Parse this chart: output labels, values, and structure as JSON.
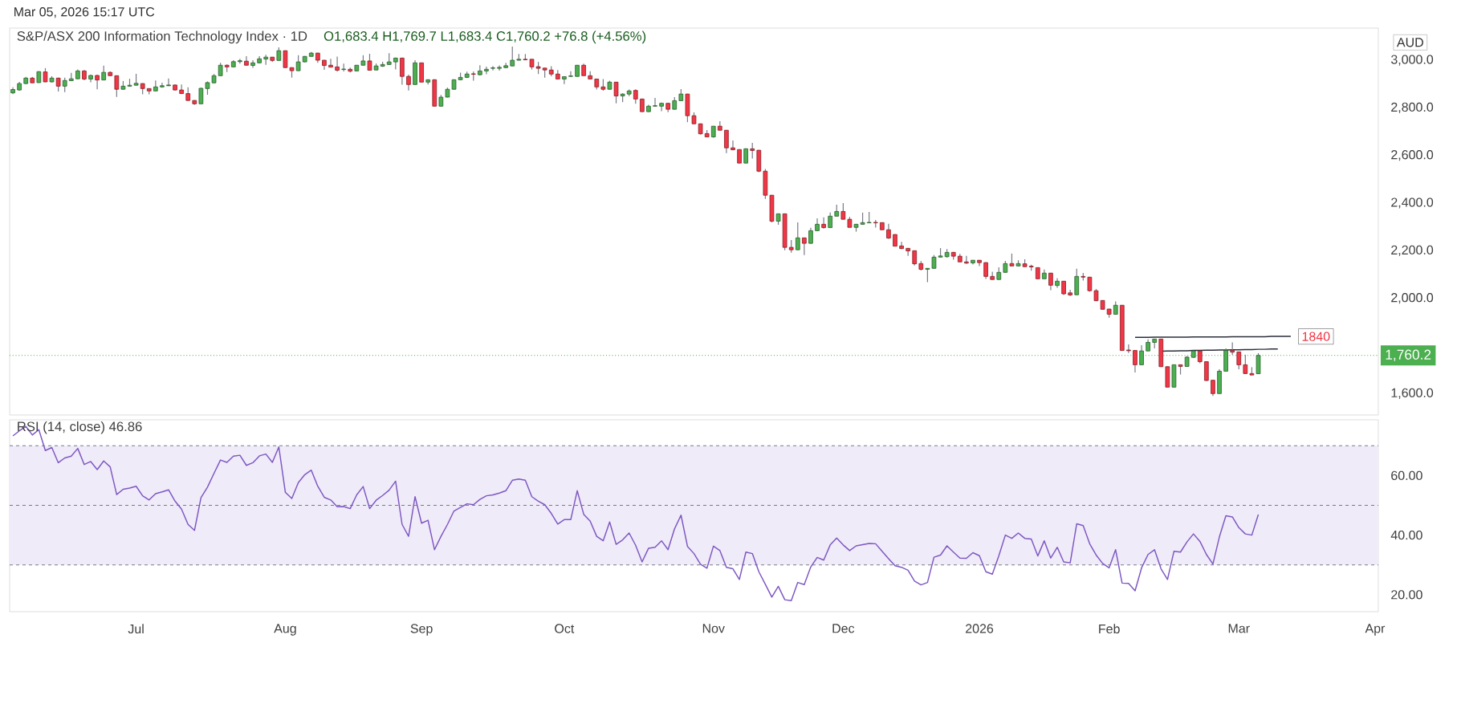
{
  "chart_data": [
    {
      "type": "candlestick",
      "title": "S&P/ASX 200 Information Technology Index · 1D",
      "subtitle": "O1,683.4 H1,769.7 L1,683.4 C1,760.2 +76.8 (+4.56%)",
      "categories": [
        null,
        null,
        null,
        null,
        null,
        null,
        null,
        null,
        null,
        null,
        null,
        null,
        null,
        null,
        null,
        null,
        null,
        null,
        null,
        null,
        null,
        null,
        null,
        null,
        null,
        null,
        null,
        null,
        null,
        null,
        null,
        null,
        null,
        null,
        null,
        null,
        null,
        null,
        null,
        null,
        null,
        null,
        null,
        null,
        null,
        null,
        null,
        null,
        null,
        null,
        null,
        null,
        null,
        null,
        null,
        null,
        null,
        null,
        null,
        null,
        null,
        null,
        null,
        null,
        null,
        null,
        null,
        null,
        null,
        null,
        null,
        null,
        null,
        null,
        null,
        null,
        null,
        null,
        null,
        null,
        null,
        null,
        null,
        null,
        null,
        null,
        null,
        null,
        null,
        null,
        null,
        null,
        null,
        null,
        null,
        null,
        null,
        null,
        null,
        null,
        null,
        null,
        null,
        null,
        null,
        null,
        null,
        null,
        null,
        null,
        null,
        null,
        null,
        null,
        null,
        null,
        null,
        null,
        null,
        null,
        null,
        null,
        null,
        null,
        null,
        null,
        null,
        null,
        null,
        null,
        null,
        null,
        null,
        null,
        null,
        null,
        null,
        null,
        null,
        null,
        null,
        null,
        null,
        null,
        null,
        null,
        null,
        null,
        null,
        null,
        null,
        null,
        null,
        null,
        null,
        null,
        null,
        null,
        null,
        null,
        null,
        null,
        null,
        null,
        null,
        null,
        null,
        null,
        null,
        null,
        null,
        null,
        null,
        null,
        null,
        null,
        null,
        null,
        null,
        null,
        null,
        null,
        null,
        null,
        null,
        null,
        null,
        null,
        null,
        null,
        null,
        null,
        null,
        null,
        null,
        null,
        null,
        null,
        null,
        null,
        null,
        null,
        null,
        null,
        null,
        null,
        null,
        null,
        null,
        null,
        null
      ],
      "ohlc": [
        [
          2863,
          2886,
          2858,
          2877
        ],
        [
          2875,
          2909,
          2873,
          2902
        ],
        [
          2902,
          2930,
          2900,
          2925
        ],
        [
          2925,
          2930,
          2905,
          2905
        ],
        [
          2906,
          2954,
          2905,
          2952
        ],
        [
          2951,
          2967,
          2908,
          2909
        ],
        [
          2909,
          2933,
          2907,
          2925
        ],
        [
          2925,
          2927,
          2869,
          2891
        ],
        [
          2891,
          2927,
          2866,
          2915
        ],
        [
          2914,
          2947,
          2913,
          2922
        ],
        [
          2922,
          2961,
          2921,
          2955
        ],
        [
          2955,
          2959,
          2916,
          2921
        ],
        [
          2921,
          2939,
          2907,
          2936
        ],
        [
          2936,
          2939,
          2878,
          2917
        ],
        [
          2917,
          2977,
          2916,
          2949
        ],
        [
          2949,
          2953,
          2934,
          2935
        ],
        [
          2935,
          2936,
          2846,
          2878
        ],
        [
          2878,
          2913,
          2877,
          2891
        ],
        [
          2891,
          2922,
          2890,
          2895
        ],
        [
          2895,
          2943,
          2894,
          2903
        ],
        [
          2902,
          2903,
          2857,
          2881
        ],
        [
          2881,
          2882,
          2857,
          2871
        ],
        [
          2871,
          2915,
          2870,
          2888
        ],
        [
          2888,
          2906,
          2885,
          2893
        ],
        [
          2893,
          2923,
          2891,
          2896
        ],
        [
          2896,
          2898,
          2873,
          2875
        ],
        [
          2875,
          2898,
          2859,
          2860
        ],
        [
          2860,
          2886,
          2830,
          2831
        ],
        [
          2831,
          2832,
          2813,
          2817
        ],
        [
          2817,
          2885,
          2816,
          2882
        ],
        [
          2881,
          2911,
          2855,
          2906
        ],
        [
          2905,
          2942,
          2904,
          2935
        ],
        [
          2935,
          2989,
          2934,
          2979
        ],
        [
          2979,
          2982,
          2950,
          2972
        ],
        [
          2972,
          3000,
          2971,
          2994
        ],
        [
          2994,
          3006,
          2986,
          2998
        ],
        [
          2996,
          3017,
          2978,
          2979
        ],
        [
          2978,
          3000,
          2968,
          2989
        ],
        [
          2989,
          3017,
          2987,
          3006
        ],
        [
          3005,
          3023,
          2981,
          3013
        ],
        [
          3013,
          3014,
          2993,
          2999
        ],
        [
          2999,
          3054,
          2998,
          3040
        ],
        [
          3040,
          3041,
          2968,
          2969
        ],
        [
          2969,
          2970,
          2927,
          2956
        ],
        [
          2956,
          3021,
          2955,
          2993
        ],
        [
          2993,
          3018,
          2992,
          3016
        ],
        [
          3016,
          3035,
          3015,
          3030
        ],
        [
          3030,
          3031,
          2989,
          3000
        ],
        [
          3000,
          3001,
          2960,
          2978
        ],
        [
          2979,
          3006,
          2970,
          2971
        ],
        [
          2972,
          3015,
          2952,
          2958
        ],
        [
          2961,
          2986,
          2953,
          2963
        ],
        [
          2962,
          2969,
          2949,
          2954
        ],
        [
          2955,
          2980,
          2954,
          2979
        ],
        [
          2979,
          3021,
          2978,
          2997
        ],
        [
          2997,
          3027,
          2957,
          2958
        ],
        [
          2959,
          2986,
          2958,
          2976
        ],
        [
          2975,
          2993,
          2972,
          2982
        ],
        [
          2982,
          3030,
          2980,
          2993
        ],
        [
          2993,
          3011,
          2961,
          3009
        ],
        [
          3009,
          3011,
          2897,
          2932
        ],
        [
          2932,
          2939,
          2873,
          2898
        ],
        [
          2898,
          3000,
          2897,
          2989
        ],
        [
          2989,
          2990,
          2908,
          2908
        ],
        [
          2908,
          2920,
          2898,
          2918
        ],
        [
          2918,
          2920,
          2806,
          2807
        ],
        [
          2807,
          2854,
          2806,
          2845
        ],
        [
          2845,
          2885,
          2844,
          2878
        ],
        [
          2878,
          2920,
          2877,
          2918
        ],
        [
          2918,
          2948,
          2917,
          2928
        ],
        [
          2928,
          2952,
          2925,
          2942
        ],
        [
          2943,
          2953,
          2914,
          2941
        ],
        [
          2939,
          2979,
          2936,
          2955
        ],
        [
          2955,
          2973,
          2941,
          2962
        ],
        [
          2966,
          2976,
          2957,
          2968
        ],
        [
          2966,
          2978,
          2956,
          2970
        ],
        [
          2969,
          2989,
          2966,
          2977
        ],
        [
          2976,
          3057,
          2975,
          3000
        ],
        [
          3000,
          3026,
          2999,
          3004
        ],
        [
          3004,
          3026,
          3002,
          3002
        ],
        [
          3004,
          3005,
          2961,
          2972
        ],
        [
          2973,
          2993,
          2942,
          2966
        ],
        [
          2967,
          2968,
          2927,
          2959
        ],
        [
          2959,
          2975,
          2933,
          2942
        ],
        [
          2942,
          2959,
          2920,
          2921
        ],
        [
          2921,
          2932,
          2900,
          2931
        ],
        [
          2932,
          2954,
          2931,
          2934
        ],
        [
          2932,
          2980,
          2931,
          2979
        ],
        [
          2979,
          2986,
          2935,
          2935
        ],
        [
          2935,
          2954,
          2920,
          2921
        ],
        [
          2921,
          2922,
          2877,
          2888
        ],
        [
          2888,
          2921,
          2872,
          2878
        ],
        [
          2878,
          2914,
          2877,
          2908
        ],
        [
          2908,
          2909,
          2819,
          2850
        ],
        [
          2850,
          2861,
          2824,
          2858
        ],
        [
          2858,
          2877,
          2849,
          2871
        ],
        [
          2873,
          2878,
          2817,
          2837
        ],
        [
          2837,
          2839,
          2783,
          2784
        ],
        [
          2784,
          2813,
          2783,
          2807
        ],
        [
          2807,
          2842,
          2806,
          2809
        ],
        [
          2807,
          2822,
          2786,
          2819
        ],
        [
          2819,
          2821,
          2782,
          2794
        ],
        [
          2794,
          2845,
          2793,
          2830
        ],
        [
          2830,
          2879,
          2829,
          2858
        ],
        [
          2858,
          2859,
          2740,
          2767
        ],
        [
          2767,
          2781,
          2732,
          2733
        ],
        [
          2733,
          2734,
          2688,
          2691
        ],
        [
          2692,
          2707,
          2677,
          2678
        ],
        [
          2678,
          2724,
          2675,
          2723
        ],
        [
          2723,
          2744,
          2705,
          2706
        ],
        [
          2706,
          2707,
          2610,
          2632
        ],
        [
          2632,
          2663,
          2622,
          2624
        ],
        [
          2625,
          2626,
          2567,
          2568
        ],
        [
          2568,
          2630,
          2567,
          2628
        ],
        [
          2628,
          2653,
          2587,
          2621
        ],
        [
          2622,
          2623,
          2530,
          2534
        ],
        [
          2534,
          2543,
          2418,
          2433
        ],
        [
          2433,
          2434,
          2319,
          2324
        ],
        [
          2324,
          2355,
          2309,
          2355
        ],
        [
          2355,
          2356,
          2202,
          2214
        ],
        [
          2214,
          2245,
          2192,
          2204
        ],
        [
          2204,
          2319,
          2202,
          2254
        ],
        [
          2254,
          2255,
          2182,
          2231
        ],
        [
          2231,
          2296,
          2229,
          2284
        ],
        [
          2284,
          2336,
          2283,
          2311
        ],
        [
          2311,
          2340,
          2293,
          2297
        ],
        [
          2297,
          2360,
          2296,
          2345
        ],
        [
          2345,
          2393,
          2344,
          2365
        ],
        [
          2365,
          2400,
          2331,
          2332
        ],
        [
          2332,
          2342,
          2298,
          2298
        ],
        [
          2298,
          2313,
          2280,
          2311
        ],
        [
          2311,
          2360,
          2310,
          2318
        ],
        [
          2317,
          2363,
          2316,
          2319
        ],
        [
          2319,
          2329,
          2297,
          2317
        ],
        [
          2318,
          2319,
          2287,
          2288
        ],
        [
          2288,
          2313,
          2250,
          2253
        ],
        [
          2268,
          2269,
          2218,
          2219
        ],
        [
          2220,
          2237,
          2207,
          2209
        ],
        [
          2210,
          2211,
          2178,
          2199
        ],
        [
          2200,
          2201,
          2138,
          2145
        ],
        [
          2146,
          2156,
          2117,
          2122
        ],
        [
          2122,
          2126,
          2068,
          2126
        ],
        [
          2126,
          2182,
          2125,
          2173
        ],
        [
          2173,
          2211,
          2172,
          2178
        ],
        [
          2175,
          2207,
          2171,
          2193
        ],
        [
          2193,
          2195,
          2162,
          2177
        ],
        [
          2177,
          2187,
          2152,
          2153
        ],
        [
          2153,
          2178,
          2145,
          2148
        ],
        [
          2149,
          2161,
          2142,
          2160
        ],
        [
          2160,
          2161,
          2135,
          2150
        ],
        [
          2150,
          2151,
          2081,
          2092
        ],
        [
          2092,
          2112,
          2078,
          2079
        ],
        [
          2079,
          2130,
          2078,
          2109
        ],
        [
          2109,
          2157,
          2108,
          2146
        ],
        [
          2146,
          2188,
          2135,
          2136
        ],
        [
          2136,
          2160,
          2135,
          2146
        ],
        [
          2145,
          2164,
          2132,
          2133
        ],
        [
          2135,
          2141,
          2116,
          2132
        ],
        [
          2129,
          2130,
          2081,
          2082
        ],
        [
          2082,
          2121,
          2081,
          2106
        ],
        [
          2106,
          2107,
          2034,
          2055
        ],
        [
          2054,
          2085,
          2044,
          2072
        ],
        [
          2072,
          2073,
          2014,
          2019
        ],
        [
          2023,
          2036,
          2010,
          2014
        ],
        [
          2015,
          2124,
          2014,
          2092
        ],
        [
          2092,
          2107,
          2075,
          2089
        ],
        [
          2089,
          2090,
          2028,
          2032
        ],
        [
          2032,
          2039,
          1988,
          1990
        ],
        [
          1991,
          1992,
          1953,
          1954
        ],
        [
          1955,
          1956,
          1919,
          1933
        ],
        [
          1933,
          1987,
          1932,
          1971
        ],
        [
          1971,
          1972,
          1780,
          1781
        ],
        [
          1783,
          1807,
          1770,
          1780
        ],
        [
          1781,
          1782,
          1689,
          1721
        ],
        [
          1721,
          1803,
          1720,
          1779
        ],
        [
          1779,
          1828,
          1778,
          1815
        ],
        [
          1815,
          1830,
          1790,
          1829
        ],
        [
          1829,
          1830,
          1712,
          1713
        ],
        [
          1713,
          1714,
          1626,
          1627
        ],
        [
          1627,
          1722,
          1626,
          1721
        ],
        [
          1721,
          1722,
          1680,
          1714
        ],
        [
          1714,
          1758,
          1713,
          1753
        ],
        [
          1752,
          1781,
          1751,
          1779
        ],
        [
          1779,
          1780,
          1727,
          1734
        ],
        [
          1734,
          1735,
          1652,
          1655
        ],
        [
          1656,
          1657,
          1590,
          1600
        ],
        [
          1600,
          1702,
          1599,
          1694
        ],
        [
          1694,
          1790,
          1693,
          1781
        ],
        [
          1781,
          1815,
          1763,
          1774
        ],
        [
          1775,
          1776,
          1702,
          1721
        ],
        [
          1721,
          1763,
          1683,
          1684
        ],
        [
          1684,
          1711,
          1677,
          1678
        ],
        [
          1683.4,
          1769.7,
          1683.4,
          1760.2
        ],
        null,
        null,
        null,
        null,
        null,
        null,
        null,
        null,
        null,
        null,
        null,
        null,
        null,
        null,
        null,
        null,
        null,
        null
      ],
      "colors": [
        "#4caf50",
        "#4caf50",
        "#4caf50",
        "#f23645",
        "#4caf50",
        "#f23645",
        "#4caf50",
        "#f23645",
        "#4caf50",
        "#4caf50",
        "#4caf50",
        "#f23645",
        "#4caf50",
        "#f23645",
        "#4caf50",
        "#f23645",
        "#f23645",
        "#4caf50",
        "#4caf50",
        "#4caf50",
        "#f23645",
        "#f23645",
        "#4caf50",
        "#4caf50",
        "#4caf50",
        "#f23645",
        "#f23645",
        "#f23645",
        "#f23645",
        "#4caf50",
        "#4caf50",
        "#4caf50",
        "#4caf50",
        "#f23645",
        "#4caf50",
        "#4caf50",
        "#f23645",
        "#4caf50",
        "#4caf50",
        "#4caf50",
        "#f23645",
        "#4caf50",
        "#f23645",
        "#f23645",
        "#4caf50",
        "#4caf50",
        "#4caf50",
        "#f23645",
        "#f23645",
        "#f23645",
        "#f23645",
        "#4caf50",
        "#f23645",
        "#4caf50",
        "#4caf50",
        "#f23645",
        "#4caf50",
        "#4caf50",
        "#4caf50",
        "#4caf50",
        "#f23645",
        "#f23645",
        "#4caf50",
        "#f23645",
        "#4caf50",
        "#f23645",
        "#4caf50",
        "#4caf50",
        "#4caf50",
        "#4caf50",
        "#4caf50",
        "#f23645",
        "#4caf50",
        "#4caf50",
        "#4caf50",
        "#4caf50",
        "#4caf50",
        "#4caf50",
        "#4caf50",
        "#f23645",
        "#f23645",
        "#f23645",
        "#f23645",
        "#f23645",
        "#f23645",
        "#4caf50",
        "#4caf50",
        "#4caf50",
        "#f23645",
        "#f23645",
        "#f23645",
        "#f23645",
        "#4caf50",
        "#f23645",
        "#4caf50",
        "#4caf50",
        "#f23645",
        "#f23645",
        "#4caf50",
        "#4caf50",
        "#4caf50",
        "#f23645",
        "#4caf50",
        "#4caf50",
        "#f23645",
        "#f23645",
        "#f23645",
        "#f23645",
        "#4caf50",
        "#f23645",
        "#f23645",
        "#f23645",
        "#f23645",
        "#4caf50",
        "#f23645",
        "#f23645",
        "#f23645",
        "#f23645",
        "#4caf50",
        "#f23645",
        "#f23645",
        "#4caf50",
        "#f23645",
        "#4caf50",
        "#4caf50",
        "#f23645",
        "#4caf50",
        "#4caf50",
        "#f23645",
        "#f23645",
        "#4caf50",
        "#4caf50",
        "#4caf50",
        "#f23645",
        "#f23645",
        "#f23645",
        "#f23645",
        "#f23645",
        "#f23645",
        "#f23645",
        "#f23645",
        "#4caf50",
        "#4caf50",
        "#4caf50",
        "#4caf50",
        "#f23645",
        "#f23645",
        "#f23645",
        "#4caf50",
        "#f23645",
        "#f23645",
        "#f23645",
        "#4caf50",
        "#4caf50",
        "#f23645",
        "#4caf50",
        "#f23645",
        "#f23645",
        "#f23645",
        "#4caf50",
        "#f23645",
        "#4caf50",
        "#f23645",
        "#f23645",
        "#4caf50",
        "#f23645",
        "#f23645",
        "#f23645",
        "#f23645",
        "#f23645",
        "#4caf50",
        "#f23645",
        "#f23645",
        "#f23645",
        "#4caf50",
        "#4caf50",
        "#4caf50",
        "#f23645",
        "#f23645",
        "#4caf50",
        "#f23645",
        "#4caf50",
        "#4caf50",
        "#f23645",
        "#f23645",
        "#f23645",
        "#4caf50",
        "#4caf50",
        "#f23645",
        "#f23645",
        "#f23645",
        "#f23645",
        "#4caf50",
        null,
        null,
        null,
        null,
        null,
        null,
        null,
        null,
        null,
        null,
        null,
        null,
        null,
        null,
        null,
        null,
        null,
        null
      ],
      "series": [
        {
          "type": "line",
          "color": "#2a2e39",
          "values": [
            null,
            null,
            null,
            null,
            null,
            null,
            null,
            null,
            null,
            null,
            null,
            null,
            null,
            null,
            null,
            null,
            null,
            null,
            null,
            null,
            null,
            null,
            null,
            null,
            null,
            null,
            null,
            null,
            null,
            null,
            null,
            null,
            null,
            null,
            null,
            null,
            null,
            null,
            null,
            null,
            null,
            null,
            null,
            null,
            null,
            null,
            null,
            null,
            null,
            null,
            null,
            null,
            null,
            null,
            null,
            null,
            null,
            null,
            null,
            null,
            null,
            null,
            null,
            null,
            null,
            null,
            null,
            null,
            null,
            null,
            null,
            null,
            null,
            null,
            null,
            null,
            null,
            null,
            null,
            null,
            null,
            null,
            null,
            null,
            null,
            null,
            null,
            null,
            null,
            null,
            null,
            null,
            null,
            null,
            null,
            null,
            null,
            null,
            null,
            null,
            null,
            null,
            null,
            null,
            null,
            null,
            null,
            null,
            null,
            null,
            null,
            null,
            null,
            null,
            null,
            null,
            null,
            null,
            null,
            null,
            null,
            null,
            null,
            null,
            null,
            null,
            null,
            null,
            null,
            null,
            null,
            null,
            null,
            null,
            null,
            null,
            null,
            null,
            null,
            null,
            null,
            null,
            null,
            null,
            null,
            null,
            null,
            null,
            null,
            null,
            null,
            null,
            null,
            null,
            null,
            null,
            null,
            null,
            null,
            null,
            null,
            null,
            null,
            null,
            null,
            null,
            null,
            null,
            null,
            null,
            null,
            null,
            null,
            1836,
            1836,
            1836,
            1837,
            1837,
            1837,
            1837,
            1837,
            1837,
            1838,
            1838,
            1838,
            1838,
            1838,
            1838,
            1839,
            1839,
            1839,
            1839,
            1839,
            1839,
            1840,
            1840,
            1840,
            1840,
            null,
            null,
            null,
            null,
            null,
            null,
            null,
            null,
            null,
            null,
            null,
            null,
            null
          ]
        },
        {
          "type": "line",
          "color": "#2a2e39",
          "values": [
            null,
            null,
            null,
            null,
            null,
            null,
            null,
            null,
            null,
            null,
            null,
            null,
            null,
            null,
            null,
            null,
            null,
            null,
            null,
            null,
            null,
            null,
            null,
            null,
            null,
            null,
            null,
            null,
            null,
            null,
            null,
            null,
            null,
            null,
            null,
            null,
            null,
            null,
            null,
            null,
            null,
            null,
            null,
            null,
            null,
            null,
            null,
            null,
            null,
            null,
            null,
            null,
            null,
            null,
            null,
            null,
            null,
            null,
            null,
            null,
            null,
            null,
            null,
            null,
            null,
            null,
            null,
            null,
            null,
            null,
            null,
            null,
            null,
            null,
            null,
            null,
            null,
            null,
            null,
            null,
            null,
            null,
            null,
            null,
            null,
            null,
            null,
            null,
            null,
            null,
            null,
            null,
            null,
            null,
            null,
            null,
            null,
            null,
            null,
            null,
            null,
            null,
            null,
            null,
            null,
            null,
            null,
            null,
            null,
            null,
            null,
            null,
            null,
            null,
            null,
            null,
            null,
            null,
            null,
            null,
            null,
            null,
            null,
            null,
            null,
            null,
            null,
            null,
            null,
            null,
            null,
            null,
            null,
            null,
            null,
            null,
            null,
            null,
            null,
            null,
            null,
            null,
            null,
            null,
            null,
            null,
            null,
            null,
            null,
            null,
            null,
            null,
            null,
            null,
            null,
            null,
            null,
            null,
            null,
            null,
            null,
            null,
            null,
            null,
            null,
            null,
            null,
            null,
            null,
            null,
            null,
            null,
            null,
            null,
            null,
            null,
            null,
            1778,
            1779,
            1779,
            1780,
            1780,
            1781,
            1781,
            1782,
            1782,
            1783,
            1783,
            1784,
            1784,
            1785,
            1785,
            1786,
            1786,
            1787,
            1787,
            null,
            null,
            null,
            null,
            null,
            null,
            null,
            null,
            null,
            null,
            null,
            null,
            null,
            null,
            null
          ]
        }
      ],
      "ylim": [
        1510,
        3135
      ],
      "yticks": [
        {
          "value": 1600,
          "label": "1,600.0"
        },
        {
          "value": 2000,
          "label": "2,000.0"
        },
        {
          "value": 2200,
          "label": "2,200.0"
        },
        {
          "value": 2400,
          "label": "2,400.0"
        },
        {
          "value": 2600,
          "label": "2,600.0"
        },
        {
          "value": 2800,
          "label": "2,800.0"
        },
        {
          "value": 3000,
          "label": "3,000.0"
        }
      ],
      "ref_lines": [
        {
          "axis": "y",
          "value": 1760.2,
          "label": "1,760.2",
          "color": "#4caf50",
          "line_style": "dotted"
        }
      ],
      "annotations": [
        "Mar 05, 2026 15:17 UTC",
        "AUD",
        "1840"
      ],
      "tick_labels": "y"
    },
    {
      "type": "line",
      "title": "RSI (14, close) 46.86",
      "color": "#7e57c2",
      "categories": [
        null,
        null,
        null,
        null,
        null,
        null,
        null,
        null,
        null,
        null,
        null,
        null,
        null,
        null,
        null,
        null,
        null,
        null,
        null,
        "Jul",
        null,
        null,
        null,
        null,
        null,
        null,
        null,
        null,
        null,
        null,
        null,
        null,
        null,
        null,
        null,
        null,
        null,
        null,
        null,
        null,
        null,
        null,
        "Aug",
        null,
        null,
        null,
        null,
        null,
        null,
        null,
        null,
        null,
        null,
        null,
        null,
        null,
        null,
        null,
        null,
        null,
        null,
        null,
        null,
        "Sep",
        null,
        null,
        null,
        null,
        null,
        null,
        null,
        null,
        null,
        null,
        null,
        null,
        null,
        null,
        null,
        null,
        null,
        null,
        null,
        null,
        null,
        "Oct",
        null,
        null,
        null,
        null,
        null,
        null,
        null,
        null,
        null,
        null,
        null,
        null,
        null,
        null,
        null,
        null,
        null,
        null,
        null,
        null,
        null,
        null,
        "Nov",
        null,
        null,
        null,
        null,
        null,
        null,
        null,
        null,
        null,
        null,
        null,
        null,
        null,
        null,
        null,
        null,
        null,
        null,
        null,
        "Dec",
        null,
        null,
        null,
        null,
        null,
        null,
        null,
        null,
        null,
        null,
        null,
        null,
        null,
        null,
        null,
        null,
        null,
        null,
        null,
        null,
        "2026",
        null,
        null,
        null,
        null,
        null,
        null,
        null,
        null,
        null,
        null,
        null,
        null,
        null,
        null,
        null,
        null,
        null,
        null,
        null,
        "Feb",
        null,
        null,
        null,
        null,
        null,
        null,
        null,
        null,
        null,
        null,
        null,
        null,
        null,
        null,
        null,
        null,
        null,
        null,
        null,
        "Mar",
        null,
        null,
        null,
        null,
        null,
        null,
        null,
        null,
        null,
        null,
        null,
        null,
        null,
        null,
        null,
        null,
        null,
        null,
        null,
        null,
        "Apr"
      ],
      "values": [
        73.3,
        75.0,
        76.5,
        73.6,
        75.4,
        68.4,
        69.4,
        64.3,
        65.9,
        66.5,
        69.1,
        63.7,
        64.7,
        62.0,
        64.9,
        62.9,
        53.6,
        55.4,
        55.8,
        56.4,
        53.2,
        51.8,
        53.9,
        54.5,
        55.2,
        51.4,
        48.7,
        43.6,
        41.6,
        52.6,
        56.1,
        60.7,
        65.2,
        64.4,
        66.5,
        66.8,
        63.4,
        64.3,
        66.6,
        67.2,
        64.4,
        69.6,
        54.4,
        52.3,
        57.6,
        60.3,
        61.8,
        56.4,
        52.7,
        51.8,
        49.5,
        49.6,
        48.9,
        53.5,
        56.3,
        48.9,
        51.7,
        53.3,
        55.1,
        58.1,
        43.6,
        39.6,
        52.9,
        44.0,
        45.0,
        35.1,
        39.6,
        43.6,
        48.1,
        49.3,
        50.5,
        50.2,
        52.0,
        53.2,
        53.5,
        54.1,
        54.9,
        58.4,
        58.8,
        58.4,
        52.9,
        51.4,
        50.2,
        47.3,
        43.7,
        45.2,
        45.2,
        54.9,
        47.0,
        44.7,
        39.6,
        38.1,
        44.4,
        36.9,
        38.4,
        40.7,
        36.6,
        31.0,
        35.6,
        35.9,
        38.1,
        35.1,
        42.1,
        46.7,
        36.2,
        33.8,
        30.2,
        28.9,
        36.3,
        34.8,
        29.2,
        28.7,
        25.1,
        34.3,
        33.8,
        27.7,
        23.5,
        19.2,
        22.8,
        18.3,
        18.0,
        24.1,
        23.4,
        29.3,
        32.5,
        31.6,
        36.7,
        39.0,
        36.7,
        34.8,
        36.4,
        36.8,
        37.2,
        37.1,
        34.6,
        32.1,
        29.7,
        29.2,
        28.2,
        24.6,
        23.3,
        24.1,
        32.6,
        33.3,
        36.4,
        34.3,
        32.3,
        32.2,
        34.1,
        33.1,
        27.7,
        26.9,
        33.1,
        40.0,
        38.9,
        40.7,
        38.9,
        38.7,
        33.0,
        38.1,
        32.3,
        35.9,
        31.0,
        30.7,
        43.8,
        43.2,
        37.1,
        33.3,
        30.5,
        29.0,
        35.1,
        23.9,
        23.8,
        21.3,
        29.0,
        33.5,
        35.1,
        28.7,
        25.1,
        34.6,
        34.3,
        37.7,
        40.4,
        37.9,
        33.5,
        30.3,
        39.4,
        46.5,
        46.1,
        42.5,
        40.4,
        40.0,
        46.9,
        null,
        null,
        null,
        null,
        null,
        null,
        null,
        null,
        null,
        null,
        null,
        null,
        null,
        null,
        null,
        null,
        null,
        null
      ],
      "ylim": [
        14.3,
        78.7
      ],
      "yticks": [
        {
          "value": 20,
          "label": "20.00"
        },
        {
          "value": 40,
          "label": "40.00"
        },
        {
          "value": 60,
          "label": "60.00"
        }
      ],
      "ref_lines": [
        {
          "axis": "y",
          "value": 70,
          "color": "#787b86",
          "line_style": "dashed"
        },
        {
          "axis": "y",
          "value": 50,
          "color": "#787b86",
          "line_style": "dashed"
        },
        {
          "axis": "y",
          "value": 30,
          "color": "#787b86",
          "line_style": "dashed"
        }
      ],
      "bands": [
        {
          "axis": "y",
          "from": 30,
          "to": 70,
          "color": "#efebf8"
        }
      ]
    }
  ]
}
